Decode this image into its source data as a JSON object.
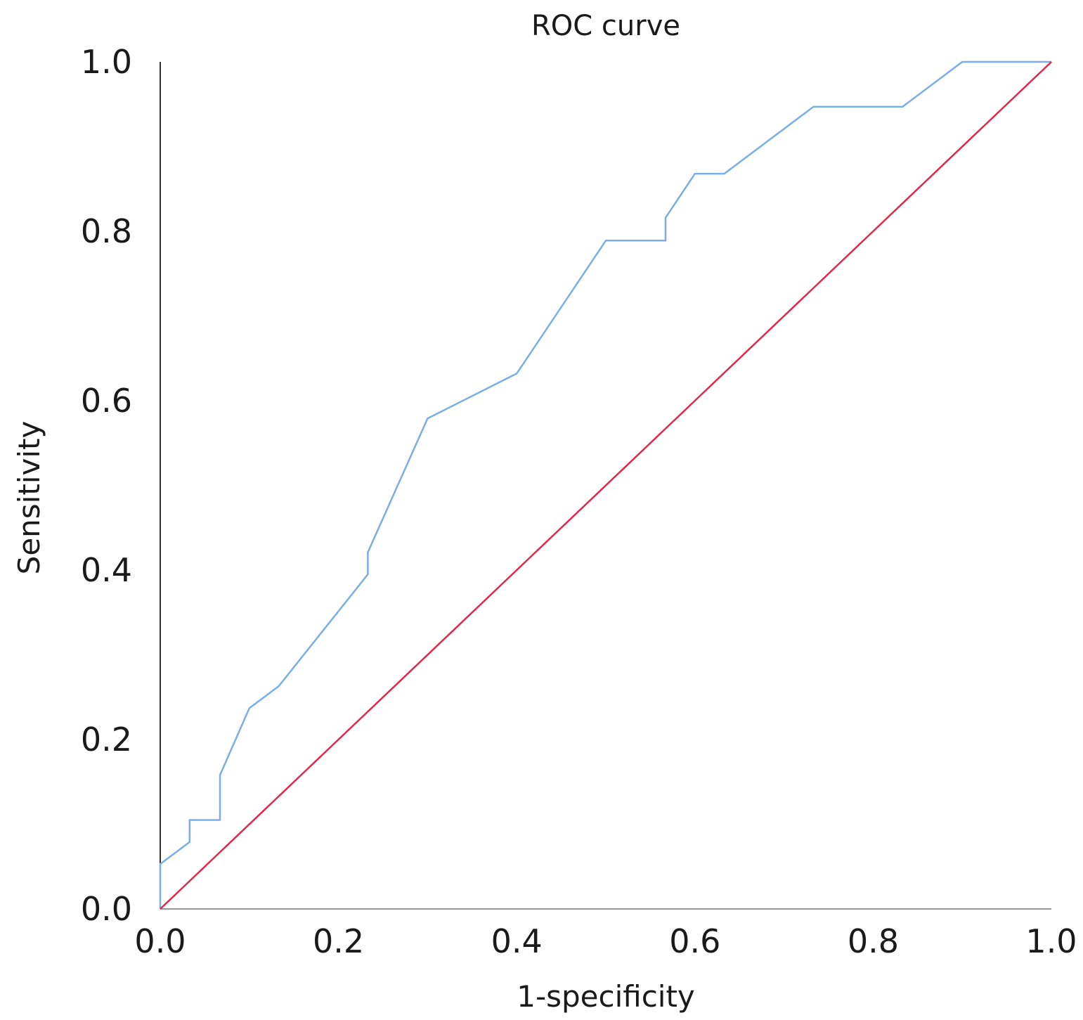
{
  "chart_data": {
    "type": "line",
    "title": "ROC curve",
    "xlabel": "1-specificity",
    "ylabel": "Sensitivity",
    "xlim": [
      0,
      1
    ],
    "ylim": [
      0,
      1
    ],
    "x_ticks": [
      "0.0",
      "0.2",
      "0.4",
      "0.6",
      "0.8",
      "1.0"
    ],
    "y_ticks": [
      "0.0",
      "0.2",
      "0.4",
      "0.6",
      "0.8",
      "1.0"
    ],
    "grid": false,
    "legend": "none",
    "series": [
      {
        "color": "#7aaee8",
        "x": [
          0.0,
          0.0,
          0.033,
          0.033,
          0.067,
          0.067,
          0.1,
          0.133,
          0.233,
          0.233,
          0.3,
          0.4,
          0.5,
          0.567,
          0.567,
          0.6,
          0.633,
          0.733,
          0.833,
          0.9,
          1.0
        ],
        "y": [
          0.0,
          0.053,
          0.079,
          0.105,
          0.105,
          0.158,
          0.237,
          0.263,
          0.395,
          0.421,
          0.579,
          0.632,
          0.789,
          0.789,
          0.816,
          0.868,
          0.868,
          0.947,
          0.947,
          1.0,
          1.0
        ]
      },
      {
        "color": "#e0284a",
        "x": [
          0.0,
          1.0
        ],
        "y": [
          0.0,
          1.0
        ]
      }
    ]
  }
}
